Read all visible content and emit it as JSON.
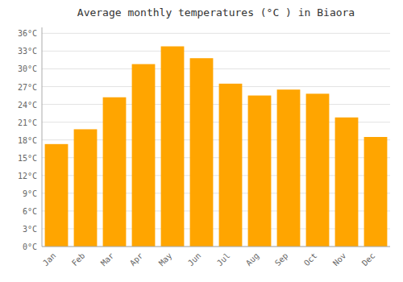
{
  "chart_data": {
    "type": "bar",
    "title": "Average monthly temperatures (°C ) in Biaora",
    "categories": [
      "Jan",
      "Feb",
      "Mar",
      "Apr",
      "May",
      "Jun",
      "Jul",
      "Aug",
      "Sep",
      "Oct",
      "Nov",
      "Dec"
    ],
    "values": [
      17.3,
      19.8,
      25.2,
      30.8,
      33.8,
      31.8,
      27.5,
      25.5,
      26.5,
      25.8,
      21.8,
      18.5
    ],
    "color": "#FFA500",
    "ylim": [
      0,
      37
    ],
    "yticks": [
      {
        "value": 0,
        "label": "0°C"
      },
      {
        "value": 3,
        "label": "3°C"
      },
      {
        "value": 6,
        "label": "6°C"
      },
      {
        "value": 9,
        "label": "9°C"
      },
      {
        "value": 12,
        "label": "12°C"
      },
      {
        "value": 15,
        "label": "15°C"
      },
      {
        "value": 18,
        "label": "18°C"
      },
      {
        "value": 21,
        "label": "21°C"
      },
      {
        "value": 24,
        "label": "24°C"
      },
      {
        "value": 27,
        "label": "27°C"
      },
      {
        "value": 30,
        "label": "30°C"
      },
      {
        "value": 33,
        "label": "33°C"
      },
      {
        "value": 36,
        "label": "36°C"
      }
    ],
    "grid": true
  }
}
